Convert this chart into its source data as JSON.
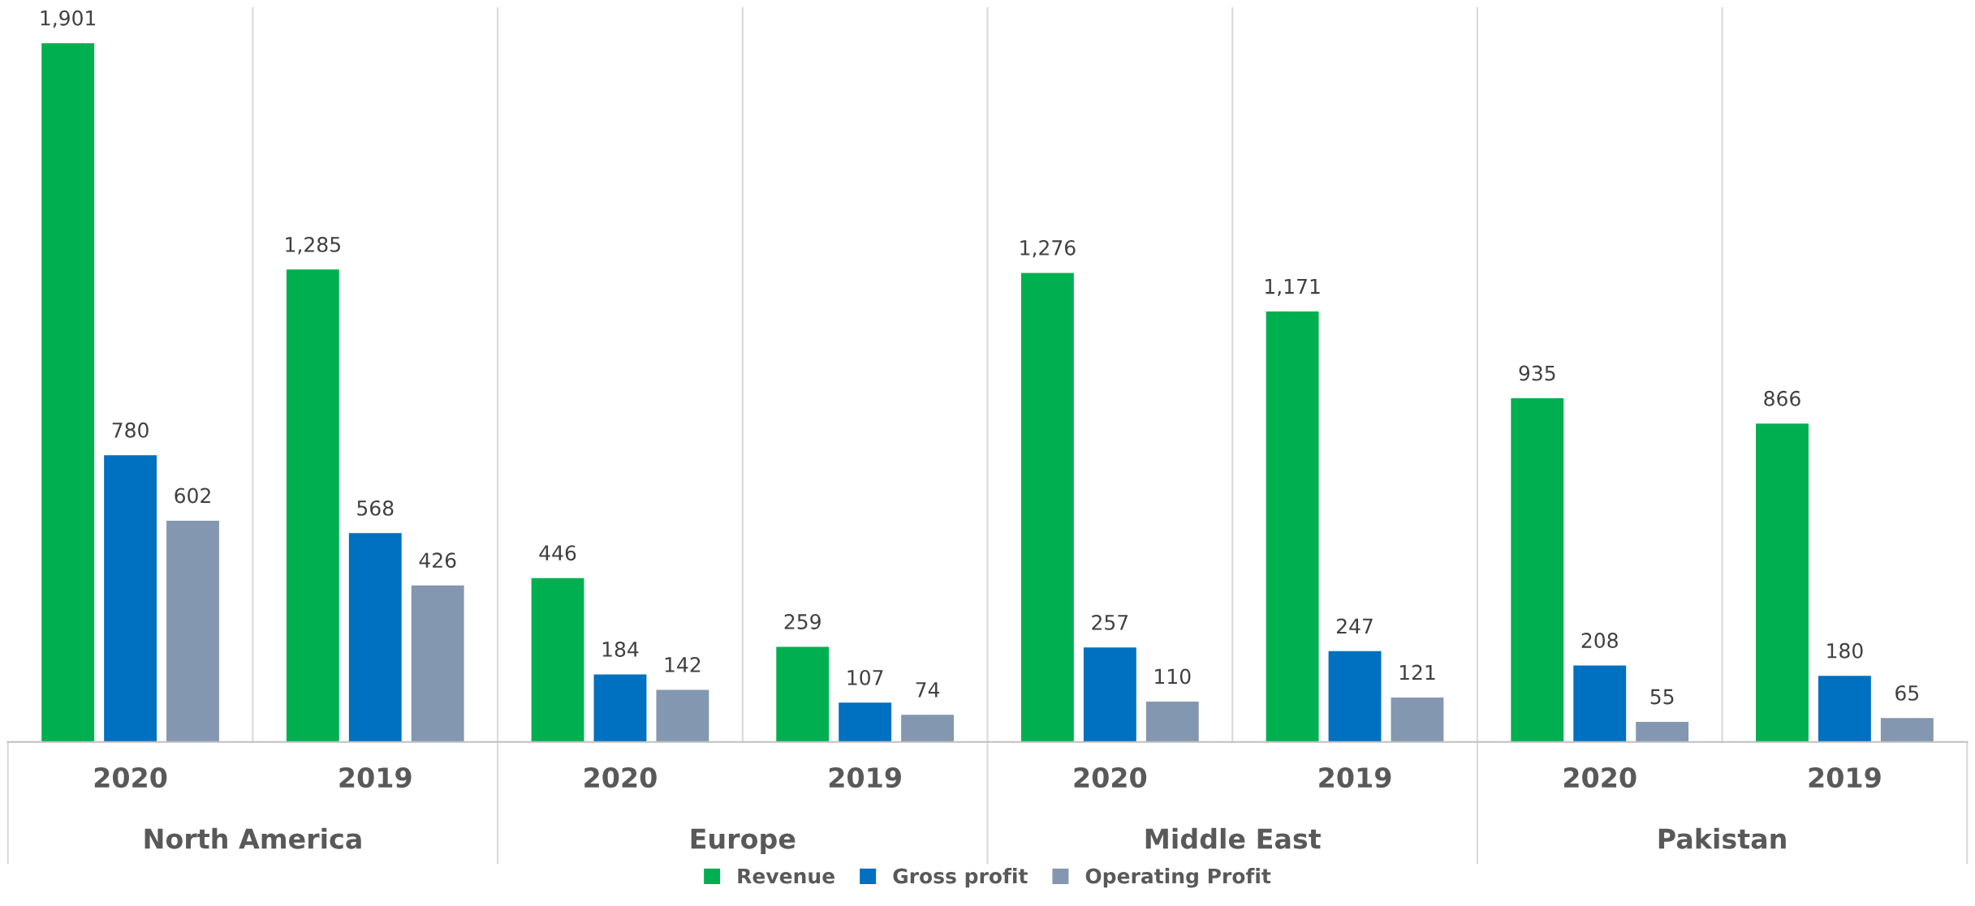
{
  "chart_data": {
    "type": "bar",
    "categories": [
      "2020",
      "2019",
      "2020",
      "2019",
      "2020",
      "2019",
      "2020",
      "2019"
    ],
    "annotations": [
      "North America",
      "Europe",
      "Middle East",
      "Pakistan"
    ],
    "series": [
      {
        "name": "Revenue",
        "color": "#00b050",
        "values": [
          1901,
          1285,
          446,
          259,
          1276,
          1171,
          935,
          866
        ],
        "value_labels": [
          "1,901",
          "1,285",
          "446",
          "259",
          "1,276",
          "1,171",
          "935",
          "866"
        ]
      },
      {
        "name": "Gross profit",
        "color": "#0070c0",
        "values": [
          780,
          568,
          184,
          107,
          257,
          247,
          208,
          180
        ],
        "value_labels": [
          "780",
          "568",
          "184",
          "107",
          "257",
          "247",
          "208",
          "180"
        ]
      },
      {
        "name": "Operating Profit",
        "color": "#8497b0",
        "values": [
          602,
          426,
          142,
          74,
          110,
          121,
          55,
          65
        ],
        "value_labels": [
          "602",
          "426",
          "142",
          "74",
          "110",
          "121",
          "55",
          "65"
        ]
      }
    ],
    "legend": "bottom",
    "grid": false
  }
}
